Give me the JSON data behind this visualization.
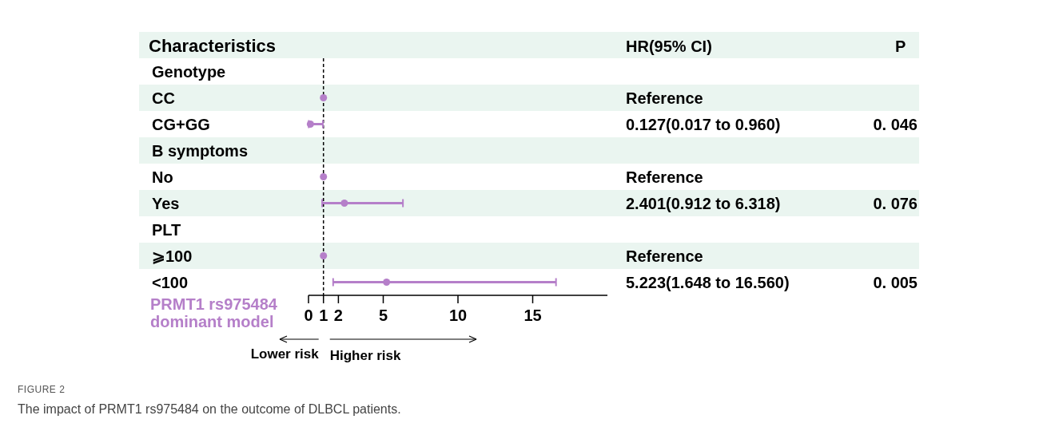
{
  "chart_data": {
    "type": "scatter",
    "orientation": "horizontal",
    "title": "FIGURE 2",
    "subtitle": "The impact of PRMT1 rs975484 on the outcome of DLBCL patients.",
    "ylabel": "Characteristics",
    "xlabel": "PRMT1 rs975484 dominant model",
    "categories": [
      "Genotype",
      "CC",
      "CG+GG",
      "B symptoms",
      "No",
      "Yes",
      "PLT",
      "⩾100",
      "<100"
    ],
    "values": [
      null,
      1,
      0.127,
      null,
      1,
      2.401,
      null,
      1,
      5.223
    ],
    "errors": [
      null,
      null,
      [
        0.017,
        0.96
      ],
      null,
      null,
      [
        0.912,
        6.318
      ],
      null,
      null,
      [
        1.648,
        16.56
      ]
    ],
    "color": "#b57fc9",
    "marker": "circle",
    "xlim": [
      0,
      20
    ],
    "xticks": [
      0,
      1,
      2,
      5,
      10,
      15
    ],
    "ref_lines": [
      {
        "axis": "x",
        "value": 1,
        "color": "#000000",
        "line_style": "dashed"
      }
    ],
    "annotations": [
      "HR(95% CI)",
      "P",
      "Reference",
      "0.127(0.017 to 0.960)",
      "Reference",
      "2.401(0.912 to 6.318)",
      "Reference",
      "5.223(1.648 to 16.560)",
      "0. 046",
      "0. 076",
      "0. 005",
      "Lower risk",
      "Higher risk"
    ]
  }
}
